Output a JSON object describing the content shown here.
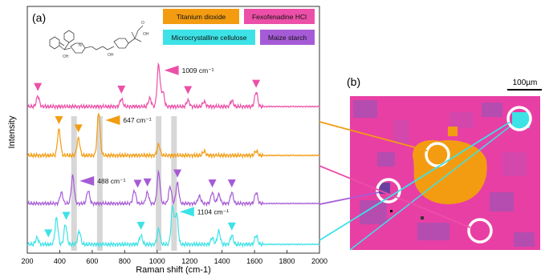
{
  "chart_data": {
    "type": "line",
    "panel_a_label": "(a)",
    "panel_b_label": "(b)",
    "xlabel": "Raman shift (cm-1)",
    "ylabel": "Intensity",
    "xlim": [
      200,
      2000
    ],
    "xticks": [
      200,
      400,
      600,
      800,
      1000,
      1200,
      1400,
      1600,
      1800,
      2000
    ],
    "grid": false,
    "legend": [
      {
        "name": "Titanium dioxide",
        "color": "#F39C12"
      },
      {
        "name": "Fexofenadine HCl",
        "color": "#EC4FA7"
      },
      {
        "name": "Microcrystalline cellulose",
        "color": "#3DE2E6"
      },
      {
        "name": "Maize starch",
        "color": "#A65BD6"
      }
    ],
    "series": [
      {
        "name": "Fexofenadine HCl",
        "color": "#EC4FA7",
        "peaks": [
          [
            265,
            0.25
          ],
          [
            780,
            0.18
          ],
          [
            955,
            0.2
          ],
          [
            1009,
            1.0
          ],
          [
            1035,
            0.35
          ],
          [
            1190,
            0.15
          ],
          [
            1290,
            0.12
          ],
          [
            1460,
            0.14
          ],
          [
            1610,
            0.35
          ]
        ]
      },
      {
        "name": "Titanium dioxide",
        "color": "#F39C12",
        "peaks": [
          [
            395,
            0.6
          ],
          [
            515,
            0.4
          ],
          [
            640,
            1.0
          ],
          [
            1009,
            0.25
          ],
          [
            1290,
            0.1
          ],
          [
            1610,
            0.1
          ]
        ]
      },
      {
        "name": "Maize starch",
        "color": "#A65BD6",
        "peaks": [
          [
            410,
            0.3
          ],
          [
            480,
            0.75
          ],
          [
            575,
            0.35
          ],
          [
            860,
            0.35
          ],
          [
            940,
            0.3
          ],
          [
            1009,
            0.85
          ],
          [
            1080,
            0.45
          ],
          [
            1125,
            0.55
          ],
          [
            1260,
            0.2
          ],
          [
            1340,
            0.3
          ],
          [
            1380,
            0.25
          ],
          [
            1460,
            0.3
          ],
          [
            1610,
            0.3
          ]
        ]
      },
      {
        "name": "Microcrystalline cellulose",
        "color": "#3DE2E6",
        "peaks": [
          [
            260,
            0.15
          ],
          [
            380,
            0.6
          ],
          [
            435,
            0.45
          ],
          [
            520,
            0.3
          ],
          [
            900,
            0.2
          ],
          [
            1009,
            0.35
          ],
          [
            1095,
            0.85
          ],
          [
            1120,
            0.7
          ],
          [
            1340,
            0.15
          ],
          [
            1380,
            0.3
          ],
          [
            1460,
            0.2
          ],
          [
            1610,
            0.2
          ]
        ]
      }
    ],
    "annotations": [
      {
        "text": "1009 cm⁻¹",
        "x": 1009,
        "series": "Fexofenadine HCl"
      },
      {
        "text": "647 cm⁻¹",
        "x": 647,
        "series": "Titanium dioxide"
      },
      {
        "text": "488 cm⁻¹",
        "x": 488,
        "series": "Maize starch"
      },
      {
        "text": "1104 cm⁻¹",
        "x": 1104,
        "series": "Microcrystalline cellulose"
      }
    ],
    "highlight_bands": [
      488,
      647,
      1009,
      1104
    ],
    "marker_peaks": {
      "Fexofenadine HCl": [
        265,
        780,
        1190,
        1610
      ],
      "Titanium dioxide": [
        395,
        515
      ],
      "Maize starch": [
        880,
        940,
        1125,
        1340,
        1460
      ],
      "Microcrystalline cellulose": [
        330,
        440,
        900,
        1460
      ]
    },
    "scale_bar": "100µm"
  }
}
